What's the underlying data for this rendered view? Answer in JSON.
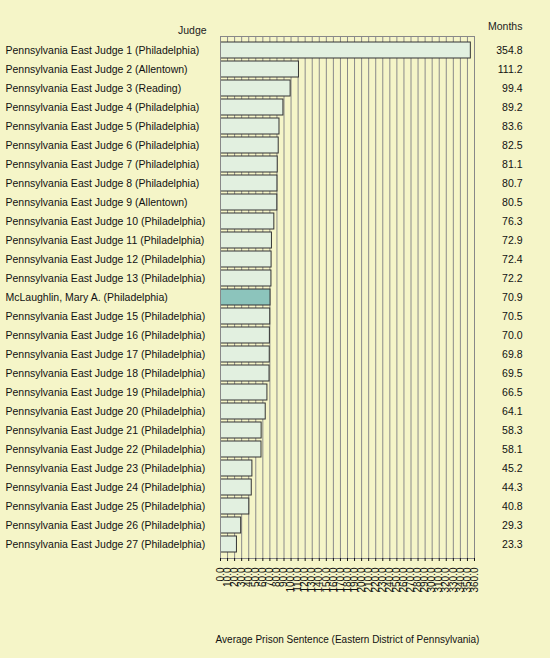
{
  "chart_data": {
    "type": "bar",
    "orientation": "horizontal",
    "ylabel": "Judge",
    "data_label_title": "Months",
    "xlabel": "Average Prison Sentence (Eastern District of Pennsylvania)",
    "categories": [
      "Pennsylvania East Judge 1 (Philadelphia)",
      "Pennsylvania East Judge 2 (Allentown)",
      "Pennsylvania East Judge 3 (Reading)",
      "Pennsylvania East Judge 4 (Philadelphia)",
      "Pennsylvania East Judge 5 (Philadelphia)",
      "Pennsylvania East Judge 6 (Philadelphia)",
      "Pennsylvania East Judge 7 (Philadelphia)",
      "Pennsylvania East Judge 8 (Philadelphia)",
      "Pennsylvania East Judge 9 (Allentown)",
      "Pennsylvania East Judge 10 (Philadelphia)",
      "Pennsylvania East Judge 11 (Philadelphia)",
      "Pennsylvania East Judge 12 (Philadelphia)",
      "Pennsylvania East Judge 13 (Philadelphia)",
      "McLaughlin, Mary A. (Philadelphia)",
      "Pennsylvania East Judge 15 (Philadelphia)",
      "Pennsylvania East Judge 16 (Philadelphia)",
      "Pennsylvania East Judge 17 (Philadelphia)",
      "Pennsylvania East Judge 18 (Philadelphia)",
      "Pennsylvania East Judge 19 (Philadelphia)",
      "Pennsylvania East Judge 20 (Philadelphia)",
      "Pennsylvania East Judge 21 (Philadelphia)",
      "Pennsylvania East Judge 22 (Philadelphia)",
      "Pennsylvania East Judge 23 (Philadelphia)",
      "Pennsylvania East Judge 24 (Philadelphia)",
      "Pennsylvania East Judge 25 (Philadelphia)",
      "Pennsylvania East Judge 26 (Philadelphia)",
      "Pennsylvania East Judge 27 (Philadelphia)"
    ],
    "values": [
      354.8,
      111.2,
      99.4,
      89.2,
      83.6,
      82.5,
      81.1,
      80.7,
      80.5,
      76.3,
      72.9,
      72.4,
      72.2,
      70.9,
      70.5,
      70.0,
      69.8,
      69.5,
      66.5,
      64.1,
      58.3,
      58.1,
      45.2,
      44.3,
      40.8,
      29.3,
      23.3
    ],
    "value_labels": [
      "354.8",
      "111.2",
      "99.4",
      "89.2",
      "83.6",
      "82.5",
      "81.1",
      "80.7",
      "80.5",
      "76.3",
      "72.9",
      "72.4",
      "72.2",
      "70.9",
      "70.5",
      "70.0",
      "69.8",
      "69.5",
      "66.5",
      "64.1",
      "58.3",
      "58.1",
      "45.2",
      "44.3",
      "40.8",
      "29.3",
      "23.3"
    ],
    "colors": [
      "#e2f0e0",
      "#e2f0e0",
      "#e2f0e0",
      "#e2f0e0",
      "#e2f0e0",
      "#e2f0e0",
      "#e2f0e0",
      "#e2f0e0",
      "#e2f0e0",
      "#e2f0e0",
      "#e2f0e0",
      "#e2f0e0",
      "#e2f0e0",
      "#8cc4bc",
      "#e2f0e0",
      "#e2f0e0",
      "#e2f0e0",
      "#e2f0e0",
      "#e2f0e0",
      "#e2f0e0",
      "#e2f0e0",
      "#e2f0e0",
      "#e2f0e0",
      "#e2f0e0",
      "#e2f0e0",
      "#e2f0e0",
      "#e2f0e0"
    ],
    "data_labels": true,
    "grid": true,
    "xlim": [
      0,
      360
    ],
    "xticks": [
      {
        "value": 0,
        "label": "0.0"
      },
      {
        "value": 10,
        "label": "10.0"
      },
      {
        "value": 20,
        "label": "20.0"
      },
      {
        "value": 30,
        "label": "30.0"
      },
      {
        "value": 40,
        "label": "40.0"
      },
      {
        "value": 50,
        "label": "50.0"
      },
      {
        "value": 60,
        "label": "60.0"
      },
      {
        "value": 70,
        "label": "70.0"
      },
      {
        "value": 80,
        "label": "80.0"
      },
      {
        "value": 90,
        "label": "90.0"
      },
      {
        "value": 100,
        "label": "100.0"
      },
      {
        "value": 110,
        "label": "110.0"
      },
      {
        "value": 120,
        "label": "120.0"
      },
      {
        "value": 130,
        "label": "130.0"
      },
      {
        "value": 140,
        "label": "140.0"
      },
      {
        "value": 150,
        "label": "150.0"
      },
      {
        "value": 160,
        "label": "160.0"
      },
      {
        "value": 170,
        "label": "170.0"
      },
      {
        "value": 180,
        "label": "180.0"
      },
      {
        "value": 190,
        "label": "190.0"
      },
      {
        "value": 200,
        "label": "200.0"
      },
      {
        "value": 210,
        "label": "210.0"
      },
      {
        "value": 220,
        "label": "220.0"
      },
      {
        "value": 230,
        "label": "230.0"
      },
      {
        "value": 240,
        "label": "240.0"
      },
      {
        "value": 250,
        "label": "250.0"
      },
      {
        "value": 260,
        "label": "260.0"
      },
      {
        "value": 270,
        "label": "270.0"
      },
      {
        "value": 280,
        "label": "280.0"
      },
      {
        "value": 290,
        "label": "290.0"
      },
      {
        "value": 300,
        "label": "300.0"
      },
      {
        "value": 310,
        "label": "310.0"
      },
      {
        "value": 320,
        "label": "320.0"
      },
      {
        "value": 330,
        "label": "330.0"
      },
      {
        "value": 340,
        "label": "340.0"
      },
      {
        "value": 350,
        "label": "350.0"
      },
      {
        "value": 360,
        "label": "360.0"
      }
    ]
  }
}
